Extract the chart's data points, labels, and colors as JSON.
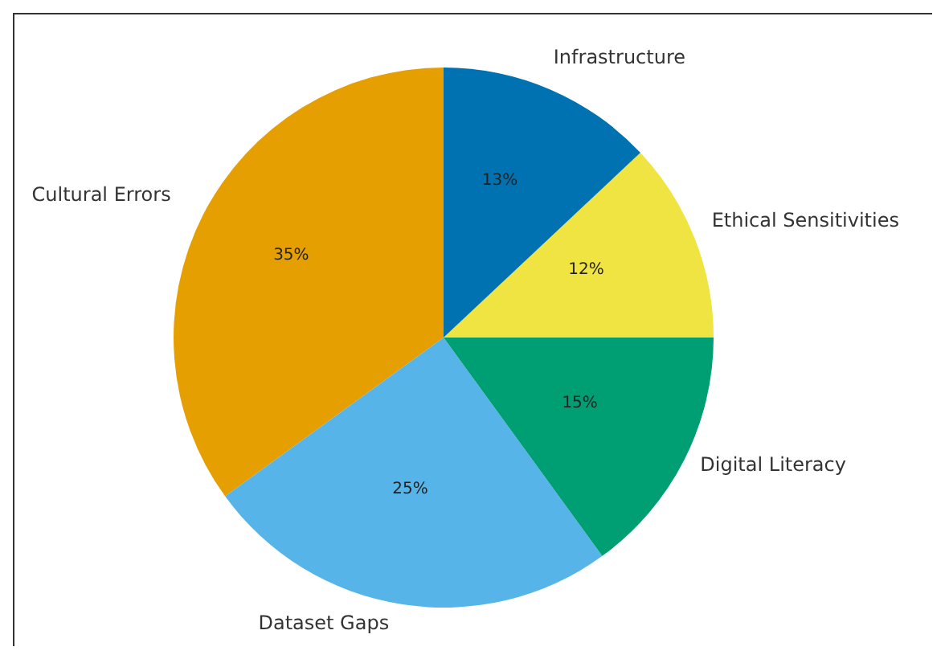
{
  "chart_data": {
    "type": "pie",
    "categories": [
      "Cultural Errors",
      "Dataset Gaps",
      "Digital Literacy",
      "Ethical Sensitivities",
      "Infrastructure"
    ],
    "values": [
      35,
      25,
      15,
      12,
      13
    ],
    "colors": [
      "#e69f00",
      "#56b4e9",
      "#009e73",
      "#f0e442",
      "#0072b2"
    ],
    "value_labels": [
      "35%",
      "25%",
      "15%",
      "12%",
      "13%"
    ],
    "legend": false
  }
}
